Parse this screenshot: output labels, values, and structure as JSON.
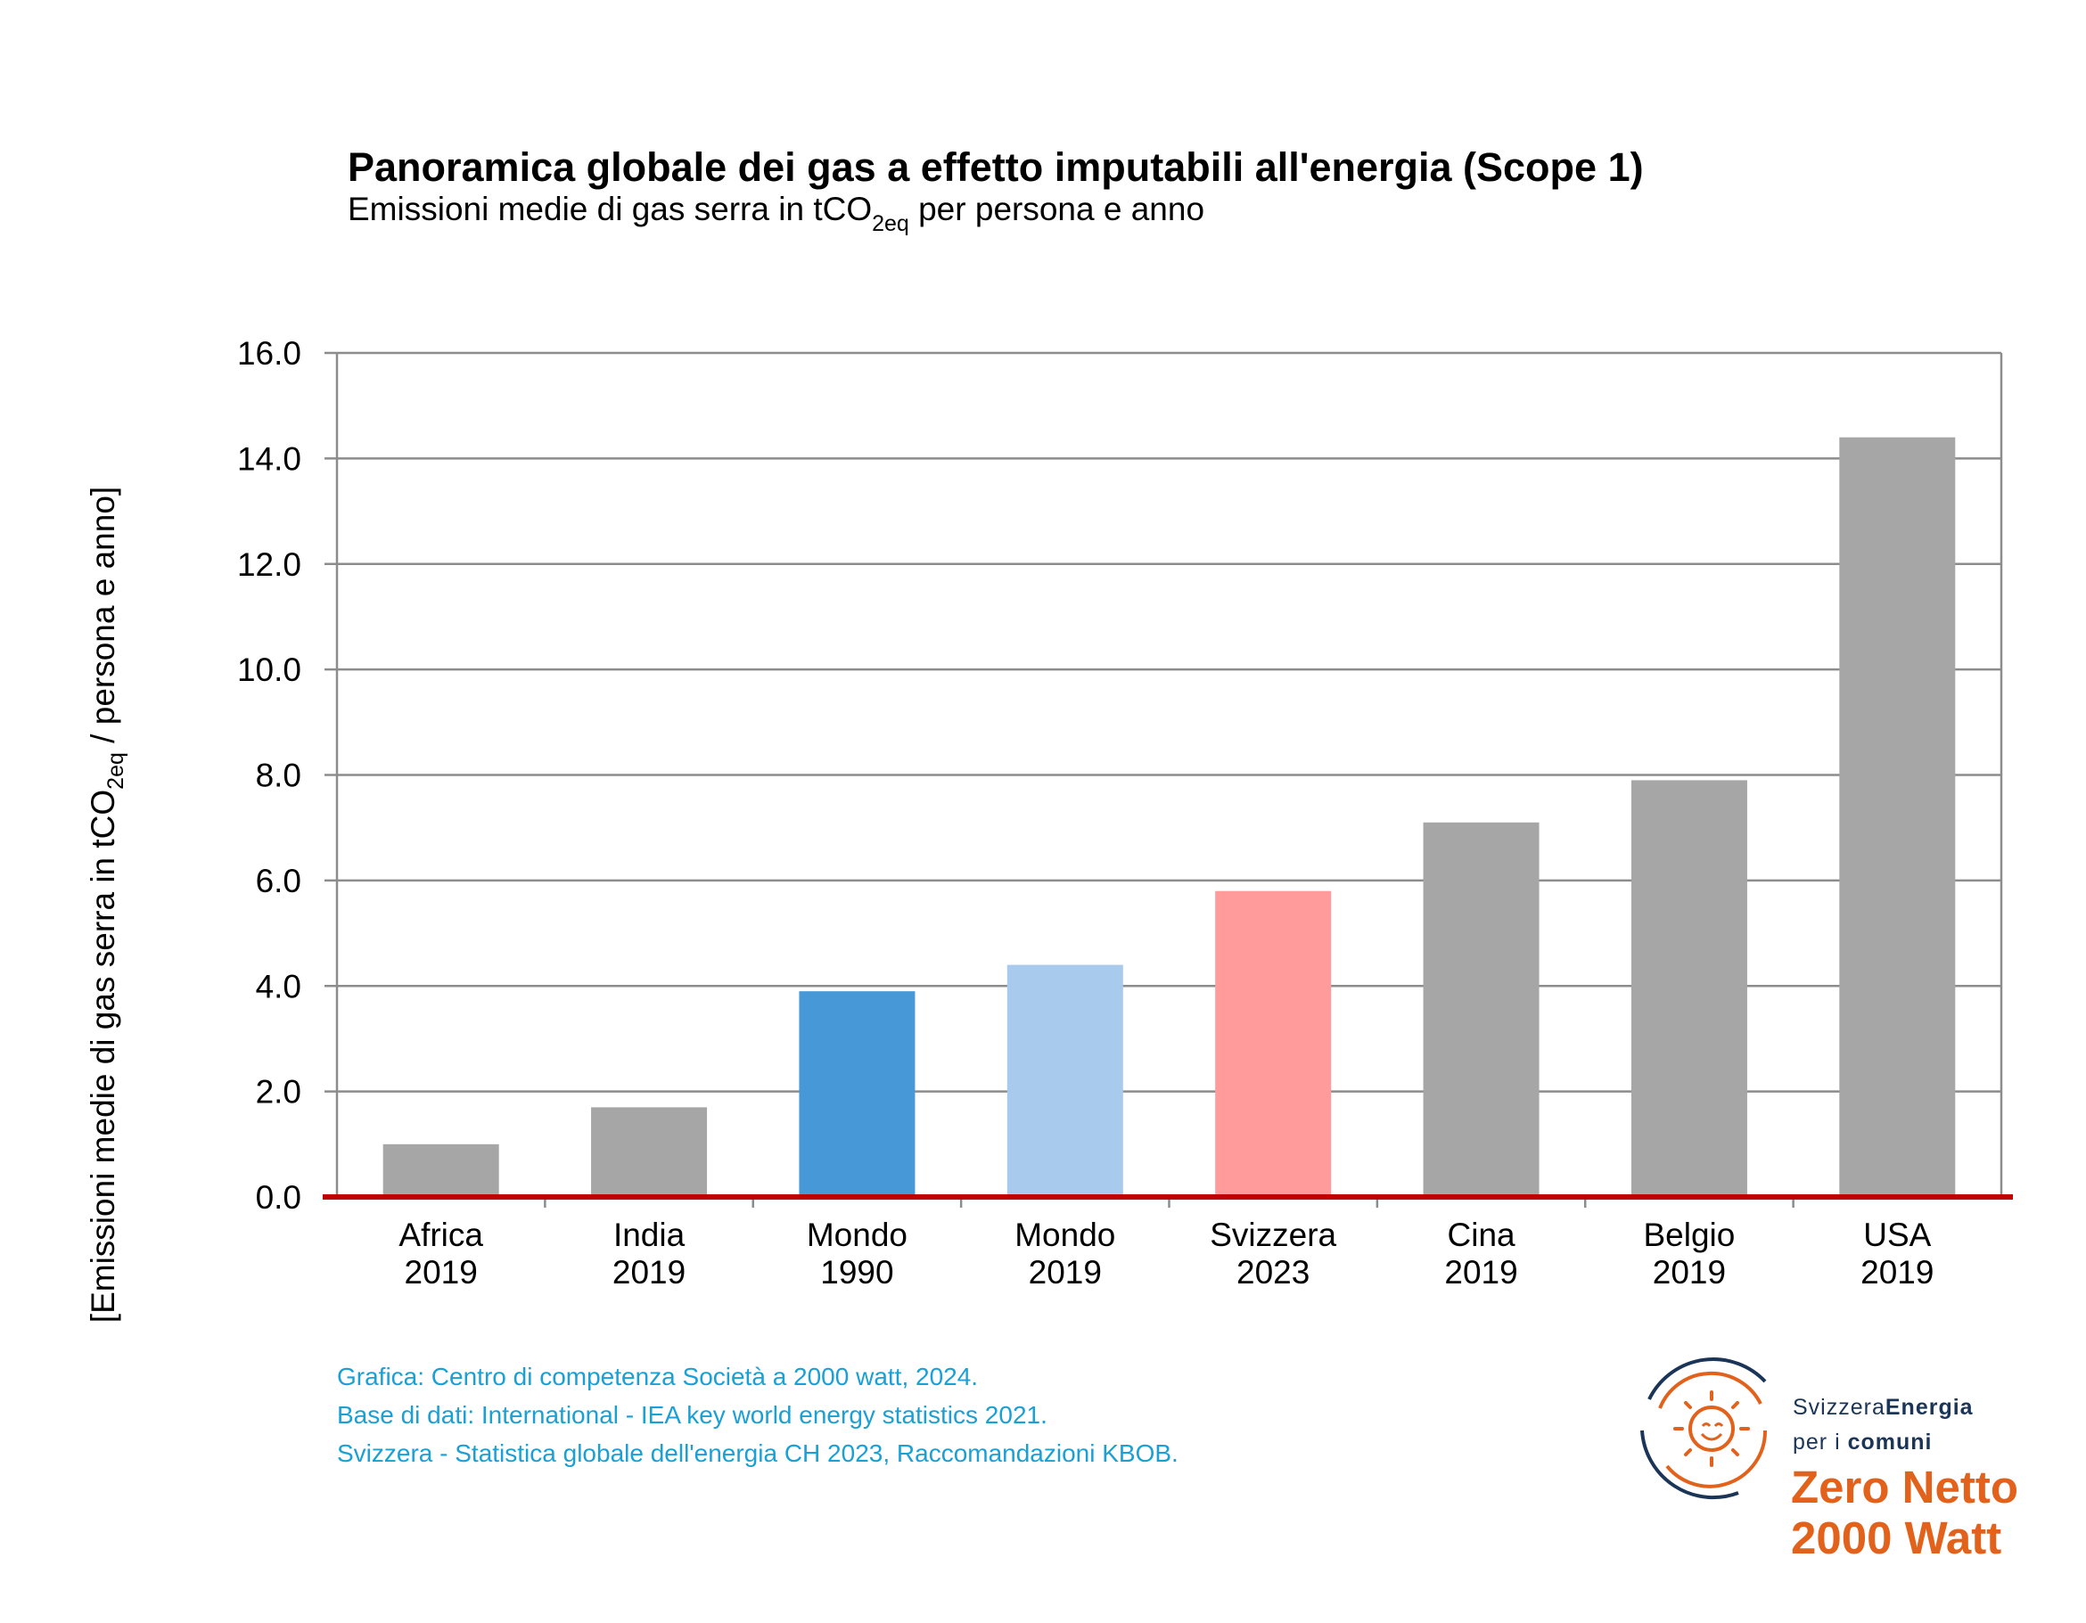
{
  "header": {
    "title": "Panoramica globale dei gas a effetto imputabili all'energia (Scope 1)",
    "subtitle_pre": "Emissioni medie di gas serra in tCO",
    "subtitle_sub": "2eq",
    "subtitle_post": " per persona e anno"
  },
  "axis": {
    "ylabel_pre": "[Emissioni medie di gas serra in tCO",
    "ylabel_sub": "2eq",
    "ylabel_post": " / persona e anno]"
  },
  "chart_data": {
    "type": "bar",
    "title": "Panoramica globale dei gas a effetto imputabili all'energia (Scope 1)",
    "subtitle": "Emissioni medie di gas serra in tCO2eq per persona e anno",
    "ylabel": "[Emissioni medie di gas serra in tCO2eq / persona e anno]",
    "xlabel": "",
    "categories": [
      [
        "Africa",
        "2019"
      ],
      [
        "India",
        "2019"
      ],
      [
        "Mondo",
        "1990"
      ],
      [
        "Mondo",
        "2019"
      ],
      [
        "Svizzera",
        "2023"
      ],
      [
        "Cina",
        "2019"
      ],
      [
        "Belgio",
        "2019"
      ],
      [
        "USA",
        "2019"
      ]
    ],
    "values": [
      1.0,
      1.7,
      3.9,
      4.4,
      5.8,
      7.1,
      7.9,
      14.4
    ],
    "bar_colors": [
      "#a6a6a6",
      "#a6a6a6",
      "#4798d6",
      "#a7caed",
      "#ff9b9b",
      "#a6a6a6",
      "#a6a6a6",
      "#a6a6a6"
    ],
    "ylim": [
      0,
      16
    ],
    "yticks": [
      0,
      2,
      4,
      6,
      8,
      10,
      12,
      14,
      16
    ],
    "ytick_labels": [
      "0.0",
      "2.0",
      "4.0",
      "6.0",
      "8.0",
      "10.0",
      "12.0",
      "14.0",
      "16.0"
    ],
    "grid": true,
    "baseline_color": "#c00000",
    "grid_color": "#8c8c8c"
  },
  "source": {
    "line1": "Grafica: Centro di competenza Società a 2000 watt, 2024.",
    "line2": "Base di dati: International - IEA key world energy statistics 2021.",
    "line3": "Svizzera - Statistica globale dell'energia  CH 2023, Raccomandazioni KBOB.",
    "color": "#1aa0d4"
  },
  "logo": {
    "brand_a": "Svizzera",
    "brand_b": "Energia",
    "brand_c": "per i ",
    "brand_d": "comuni",
    "line1": "Zero Netto",
    "line2": "2000 Watt",
    "orange": "#e2621c",
    "navy": "#1b3558",
    "icon": "smiling-sun-icon"
  }
}
